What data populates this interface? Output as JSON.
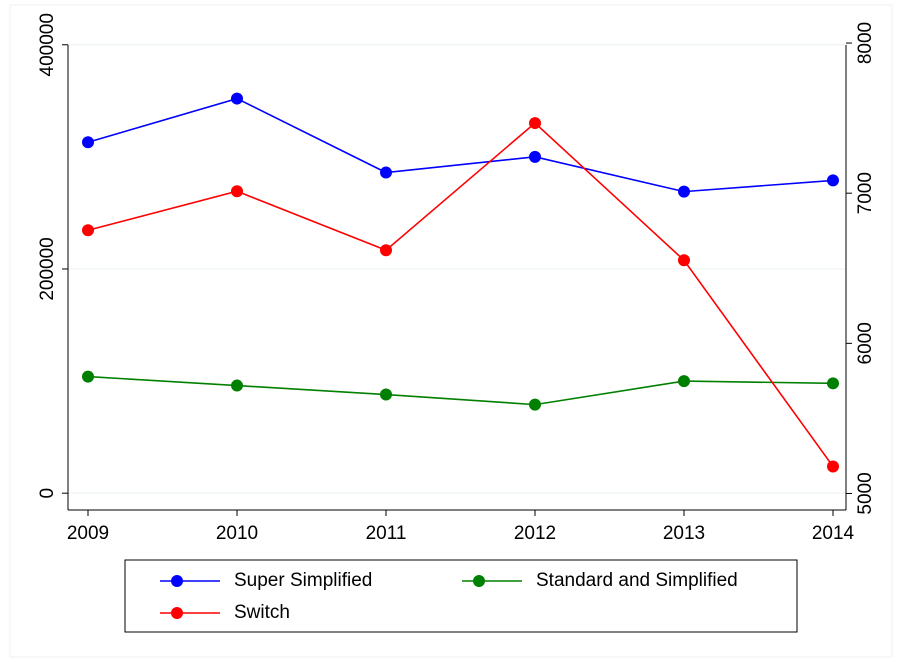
{
  "chart_data": {
    "type": "line",
    "categories": [
      "2009",
      "2010",
      "2011",
      "2012",
      "2013",
      "2014"
    ],
    "series": [
      {
        "name": "Super Simplified",
        "color": "#0000ff",
        "values": [
          313000,
          352000,
          286000,
          300000,
          269000,
          279000
        ]
      },
      {
        "name": "Standard and Simplified",
        "color": "#008000",
        "values": [
          104000,
          96000,
          88000,
          79000,
          100000,
          98000
        ]
      },
      {
        "name": "Switch",
        "color": "#ff0000",
        "axis": "y2",
        "values": [
          6753,
          7013,
          6620,
          7467,
          6553,
          5180
        ]
      }
    ],
    "ylim": [
      -15000,
      431000
    ],
    "yticks": [
      0,
      200000,
      400000
    ],
    "y2lim": [
      4890,
      8220
    ],
    "y2ticks": [
      5000,
      6000,
      7000,
      8000
    ],
    "grid": true
  }
}
